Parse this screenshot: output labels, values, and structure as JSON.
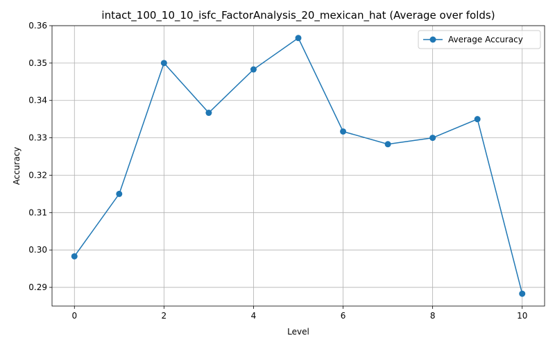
{
  "chart_data": {
    "type": "line",
    "title": "intact_100_10_10_isfc_FactorAnalysis_20_mexican_hat (Average over folds)",
    "xlabel": "Level",
    "ylabel": "Accuracy",
    "xlim": [
      -0.5,
      10.5
    ],
    "ylim": [
      0.285,
      0.36
    ],
    "xticks": [
      0,
      2,
      4,
      6,
      8,
      10
    ],
    "xtick_labels": [
      "0",
      "2",
      "4",
      "6",
      "8",
      "10"
    ],
    "yticks": [
      0.29,
      0.3,
      0.31,
      0.32,
      0.33,
      0.34,
      0.35,
      0.36
    ],
    "ytick_labels": [
      "0.29",
      "0.30",
      "0.31",
      "0.32",
      "0.33",
      "0.34",
      "0.35",
      "0.36"
    ],
    "grid": true,
    "legend_position": "top-right",
    "series": [
      {
        "name": "Average Accuracy",
        "color": "#1f77b4",
        "marker": "circle",
        "x": [
          0,
          1,
          2,
          3,
          4,
          5,
          6,
          7,
          8,
          9,
          10
        ],
        "values": [
          0.2983,
          0.315,
          0.35,
          0.3367,
          0.3483,
          0.3567,
          0.3317,
          0.3283,
          0.33,
          0.335,
          0.2883
        ]
      }
    ]
  }
}
